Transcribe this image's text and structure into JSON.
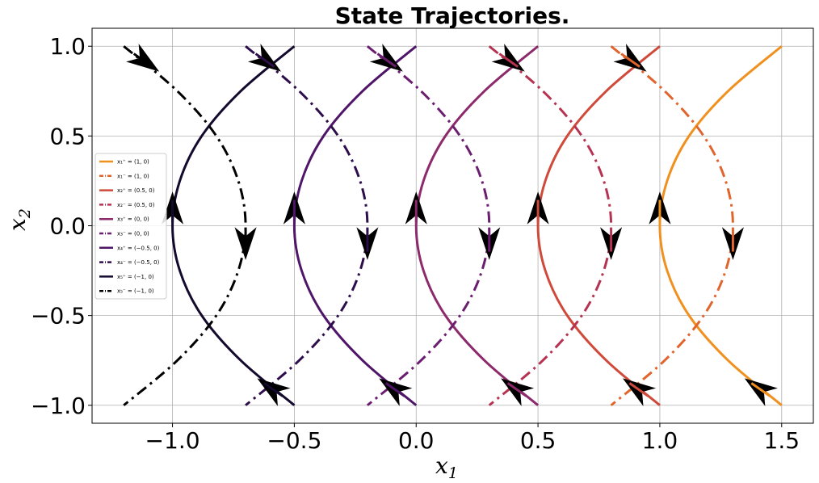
{
  "chart_data": {
    "type": "line",
    "title": "State Trajectories.",
    "xlabel": "x",
    "xlabel_sub": "1",
    "ylabel": "x",
    "ylabel_sub": "2",
    "xlim": [
      -1.33,
      1.63
    ],
    "ylim": [
      -1.1,
      1.1
    ],
    "xticks": [
      -1.0,
      -0.5,
      0.0,
      0.5,
      1.0,
      1.5
    ],
    "xtick_labels": [
      "−1.0",
      "−0.5",
      "0.0",
      "0.5",
      "1.0",
      "1.5"
    ],
    "yticks": [
      1.0,
      0.5,
      0.0,
      -0.5,
      -1.0
    ],
    "ytick_labels": [
      "1.0",
      "0.5",
      "0.0",
      "−0.5",
      "−1.0"
    ],
    "grid": true,
    "legend_position": "center-left",
    "series": [
      {
        "name": "x₁⁺ = (1, 0)",
        "style": "solid",
        "color": "#f0901e",
        "x": [
          1.5,
          1.28,
          1.12,
          1.03,
          1.0,
          1.03,
          1.12,
          1.28,
          1.5
        ],
        "y": [
          -1.0,
          -0.75,
          -0.5,
          -0.25,
          0.0,
          0.25,
          0.5,
          0.75,
          1.0
        ],
        "arrows": [
          {
            "x": 1.5,
            "y": -1.0,
            "dir": "back"
          },
          {
            "x": 1.0,
            "y": 0.0,
            "dir": "up"
          }
        ]
      },
      {
        "name": "x₁⁻ = (1, 0)",
        "style": "dashdot",
        "color": "#e0642c",
        "x": [
          0.8,
          1.02,
          1.18,
          1.27,
          1.3,
          1.27,
          1.18,
          1.02,
          0.8
        ],
        "y": [
          1.0,
          0.75,
          0.5,
          0.25,
          0.0,
          -0.25,
          -0.5,
          -0.75,
          -1.0
        ],
        "arrows": [
          {
            "x": 0.8,
            "y": 1.0,
            "dir": "fwd"
          },
          {
            "x": 1.3,
            "y": 0.0,
            "dir": "down"
          }
        ]
      },
      {
        "name": "x₂⁺ = (0.5, 0)",
        "style": "solid",
        "color": "#cf4a3b",
        "x": [
          1.0,
          0.78,
          0.62,
          0.53,
          0.5,
          0.53,
          0.62,
          0.78,
          1.0
        ],
        "y": [
          -1.0,
          -0.75,
          -0.5,
          -0.25,
          0.0,
          0.25,
          0.5,
          0.75,
          1.0
        ],
        "arrows": [
          {
            "x": 1.0,
            "y": -1.0,
            "dir": "back"
          },
          {
            "x": 0.5,
            "y": 0.0,
            "dir": "up"
          }
        ]
      },
      {
        "name": "x₂⁻ = (0.5, 0)",
        "style": "dashdot",
        "color": "#b53351",
        "x": [
          0.3,
          0.52,
          0.68,
          0.77,
          0.8,
          0.77,
          0.68,
          0.52,
          0.3
        ],
        "y": [
          1.0,
          0.75,
          0.5,
          0.25,
          0.0,
          -0.25,
          -0.5,
          -0.75,
          -1.0
        ],
        "arrows": [
          {
            "x": 0.3,
            "y": 1.0,
            "dir": "fwd"
          },
          {
            "x": 0.8,
            "y": 0.0,
            "dir": "down"
          }
        ]
      },
      {
        "name": "x₃⁺ = (0, 0)",
        "style": "solid",
        "color": "#8c2a6c",
        "x": [
          0.5,
          0.28,
          0.12,
          0.03,
          0.0,
          0.03,
          0.12,
          0.28,
          0.5
        ],
        "y": [
          -1.0,
          -0.75,
          -0.5,
          -0.25,
          0.0,
          0.25,
          0.5,
          0.75,
          1.0
        ],
        "arrows": [
          {
            "x": 0.5,
            "y": -1.0,
            "dir": "back"
          },
          {
            "x": 0.0,
            "y": 0.0,
            "dir": "up"
          }
        ]
      },
      {
        "name": "x₃⁻ = (0, 0)",
        "style": "dashdot",
        "color": "#6b1d70",
        "x": [
          -0.2,
          0.02,
          0.18,
          0.27,
          0.3,
          0.27,
          0.18,
          0.02,
          -0.2
        ],
        "y": [
          1.0,
          0.75,
          0.5,
          0.25,
          0.0,
          -0.25,
          -0.5,
          -0.75,
          -1.0
        ],
        "arrows": [
          {
            "x": -0.2,
            "y": 1.0,
            "dir": "fwd"
          },
          {
            "x": 0.3,
            "y": 0.0,
            "dir": "down"
          }
        ]
      },
      {
        "name": "x₄⁺ = (−0.5, 0)",
        "style": "solid",
        "color": "#4f1568",
        "x": [
          0.0,
          -0.22,
          -0.38,
          -0.47,
          -0.5,
          -0.47,
          -0.38,
          -0.22,
          0.0
        ],
        "y": [
          -1.0,
          -0.75,
          -0.5,
          -0.25,
          0.0,
          0.25,
          0.5,
          0.75,
          1.0
        ],
        "arrows": [
          {
            "x": 0.0,
            "y": -1.0,
            "dir": "back"
          },
          {
            "x": -0.5,
            "y": 0.0,
            "dir": "up"
          }
        ]
      },
      {
        "name": "x₄⁻ = (−0.5, 0)",
        "style": "dashdot",
        "color": "#2d0e4a",
        "x": [
          -0.7,
          -0.48,
          -0.32,
          -0.23,
          -0.2,
          -0.23,
          -0.32,
          -0.48,
          -0.7
        ],
        "y": [
          1.0,
          0.75,
          0.5,
          0.25,
          0.0,
          -0.25,
          -0.5,
          -0.75,
          -1.0
        ],
        "arrows": [
          {
            "x": -0.7,
            "y": 1.0,
            "dir": "fwd"
          },
          {
            "x": -0.2,
            "y": 0.0,
            "dir": "down"
          }
        ]
      },
      {
        "name": "x₅⁺ = (−1, 0)",
        "style": "solid",
        "color": "#140a2e",
        "x": [
          -0.5,
          -0.72,
          -0.88,
          -0.97,
          -1.0,
          -0.97,
          -0.88,
          -0.72,
          -0.5
        ],
        "y": [
          -1.0,
          -0.75,
          -0.5,
          -0.25,
          0.0,
          0.25,
          0.5,
          0.75,
          1.0
        ],
        "arrows": [
          {
            "x": -0.5,
            "y": -1.0,
            "dir": "back"
          },
          {
            "x": -1.0,
            "y": 0.0,
            "dir": "up"
          }
        ]
      },
      {
        "name": "x₅⁻ = (−1, 0)",
        "style": "dashdot",
        "color": "#000000",
        "x": [
          -1.2,
          -0.98,
          -0.82,
          -0.73,
          -0.7,
          -0.73,
          -0.82,
          -0.98,
          -1.2
        ],
        "y": [
          1.0,
          0.75,
          0.5,
          0.25,
          0.0,
          -0.25,
          -0.5,
          -0.75,
          -1.0
        ],
        "arrows": [
          {
            "x": -1.2,
            "y": 1.0,
            "dir": "fwd"
          },
          {
            "x": -0.7,
            "y": 0.0,
            "dir": "down"
          }
        ]
      }
    ]
  }
}
